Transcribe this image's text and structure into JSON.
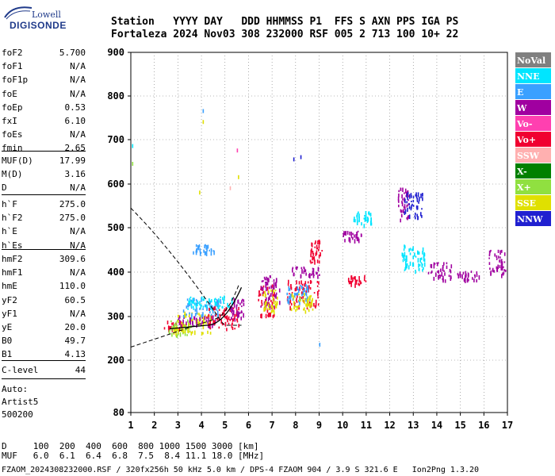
{
  "logo": {
    "brand_top": "Lowell",
    "brand_main": "DIGISONDE"
  },
  "header": {
    "line1": "Station   YYYY DAY   DDD HHMMSS P1  FFS S AXN PPS IGA PS",
    "line2": "Fortaleza 2024 Nov03 308 232000 RSF 005 2 713 100 10+ 22"
  },
  "params_group1": [
    {
      "name": "foF2",
      "value": "5.700"
    },
    {
      "name": "foF1",
      "value": "N/A"
    },
    {
      "name": "foF1p",
      "value": "N/A"
    },
    {
      "name": "foE",
      "value": "N/A"
    },
    {
      "name": "foEp",
      "value": "0.53"
    },
    {
      "name": "fxI",
      "value": "6.10"
    },
    {
      "name": "foEs",
      "value": "N/A"
    },
    {
      "name": "fmin",
      "value": "2.65"
    }
  ],
  "params_group2": [
    {
      "name": "MUF(D)",
      "value": "17.99"
    },
    {
      "name": "M(D)",
      "value": "3.16"
    },
    {
      "name": "D",
      "value": "N/A"
    }
  ],
  "params_group3": [
    {
      "name": "h`F",
      "value": "275.0"
    },
    {
      "name": "h`F2",
      "value": "275.0"
    },
    {
      "name": "h`E",
      "value": "N/A"
    },
    {
      "name": "h`Es",
      "value": "N/A"
    }
  ],
  "params_group4": [
    {
      "name": "hmF2",
      "value": "309.6"
    },
    {
      "name": "hmF1",
      "value": "N/A"
    },
    {
      "name": "hmE",
      "value": "110.0"
    },
    {
      "name": "yF2",
      "value": "60.5"
    },
    {
      "name": "yF1",
      "value": "N/A"
    },
    {
      "name": "yE",
      "value": "20.0"
    },
    {
      "name": "B0",
      "value": "49.7"
    },
    {
      "name": "B1",
      "value": "4.13"
    }
  ],
  "params_group5": [
    {
      "name": "C-level",
      "value": "44"
    }
  ],
  "autoscaling": {
    "line1": "Auto:",
    "line2": "Artist5",
    "line3": "500200"
  },
  "legend": [
    {
      "label": "NoVal",
      "color": "#808080"
    },
    {
      "label": "NNE",
      "color": "#00e5ff"
    },
    {
      "label": "E",
      "color": "#3aa0ff"
    },
    {
      "label": "W",
      "color": "#a000a0"
    },
    {
      "label": "Vo-",
      "color": "#ff40b0"
    },
    {
      "label": "Vo+",
      "color": "#f00030"
    },
    {
      "label": "SSW",
      "color": "#ffb0b0"
    },
    {
      "label": "X-",
      "color": "#008000"
    },
    {
      "label": "X+",
      "color": "#90e040"
    },
    {
      "label": "SSE",
      "color": "#e0e000"
    },
    {
      "label": "NNW",
      "color": "#2020d0"
    }
  ],
  "chart_data": {
    "type": "scatter",
    "x_ticks": [
      "1",
      "2",
      "3",
      "4",
      "5",
      "6",
      "7",
      "8",
      "9",
      "10",
      "11",
      "12",
      "13",
      "14",
      "15",
      "16",
      "17"
    ],
    "y_ticks": [
      "80",
      "200",
      "300",
      "400",
      "500",
      "600",
      "700",
      "800",
      "900"
    ],
    "xlim": [
      1,
      17
    ],
    "y_axis_breaks": [
      80,
      200,
      300,
      400,
      500,
      600,
      700,
      800,
      900
    ],
    "ionogram_clusters": [
      {
        "x": [
          2.4,
          3.2
        ],
        "y": [
          265,
          290
        ],
        "color": "#f00030"
      },
      {
        "x": [
          2.6,
          3.6
        ],
        "y": [
          255,
          290
        ],
        "color": "#90e040"
      },
      {
        "x": [
          2.8,
          4.4
        ],
        "y": [
          260,
          310
        ],
        "color": "#e0e000"
      },
      {
        "x": [
          3.0,
          4.6
        ],
        "y": [
          275,
          300
        ],
        "color": "#a000a0"
      },
      {
        "x": [
          3.2,
          4.8
        ],
        "y": [
          300,
          340
        ],
        "color": "#3aa0ff"
      },
      {
        "x": [
          3.4,
          5.4
        ],
        "y": [
          315,
          345
        ],
        "color": "#00e5ff"
      },
      {
        "x": [
          4.2,
          5.6
        ],
        "y": [
          270,
          320
        ],
        "color": "#f00030"
      },
      {
        "x": [
          5.2,
          5.8
        ],
        "y": [
          290,
          340
        ],
        "color": "#a000a0"
      },
      {
        "x": [
          6.4,
          7.1
        ],
        "y": [
          300,
          370
        ],
        "color": "#f00030"
      },
      {
        "x": [
          6.5,
          7.3
        ],
        "y": [
          320,
          390
        ],
        "color": "#a000a0"
      },
      {
        "x": [
          6.6,
          7.2
        ],
        "y": [
          310,
          360
        ],
        "color": "#e0e000"
      },
      {
        "x": [
          7.6,
          9.0
        ],
        "y": [
          320,
          380
        ],
        "color": "#f00030"
      },
      {
        "x": [
          7.6,
          8.6
        ],
        "y": [
          330,
          370
        ],
        "color": "#3aa0ff"
      },
      {
        "x": [
          7.8,
          8.8
        ],
        "y": [
          310,
          350
        ],
        "color": "#e0e000"
      },
      {
        "x": [
          8.6,
          9.1
        ],
        "y": [
          420,
          470
        ],
        "color": "#f00030"
      },
      {
        "x": [
          7.8,
          9.0
        ],
        "y": [
          390,
          410
        ],
        "color": "#a000a0"
      },
      {
        "x": [
          10.0,
          10.8
        ],
        "y": [
          470,
          490
        ],
        "color": "#a000a0"
      },
      {
        "x": [
          10.4,
          11.2
        ],
        "y": [
          505,
          535
        ],
        "color": "#00e5ff"
      },
      {
        "x": [
          12.3,
          12.8
        ],
        "y": [
          510,
          590
        ],
        "color": "#a000a0"
      },
      {
        "x": [
          12.6,
          13.4
        ],
        "y": [
          520,
          580
        ],
        "color": "#2020d0"
      },
      {
        "x": [
          13.6,
          14.6
        ],
        "y": [
          380,
          420
        ],
        "color": "#a000a0"
      },
      {
        "x": [
          14.8,
          15.8
        ],
        "y": [
          380,
          400
        ],
        "color": "#a000a0"
      },
      {
        "x": [
          16.2,
          16.9
        ],
        "y": [
          390,
          450
        ],
        "color": "#a000a0"
      },
      {
        "x": [
          3.6,
          4.6
        ],
        "y": [
          440,
          460
        ],
        "color": "#3aa0ff"
      },
      {
        "x": [
          10.2,
          11.0
        ],
        "y": [
          370,
          390
        ],
        "color": "#f00030"
      },
      {
        "x": [
          12.5,
          13.5
        ],
        "y": [
          400,
          460
        ],
        "color": "#00e5ff"
      }
    ]
  },
  "bottom": {
    "distance_row": "D     100  200  400  600  800 1000 1500 3000 [km]",
    "muf_row": "MUF   6.0  6.1  6.4  6.8  7.5  8.4 11.1 18.0 [MHz]",
    "footer": "FZAOM_2024308232000.RSF / 320fx256h 50 kHz 5.0 km / DPS-4 FZAOM 904 / 3.9 S 321.6 E   Ion2Png 1.3.20"
  }
}
